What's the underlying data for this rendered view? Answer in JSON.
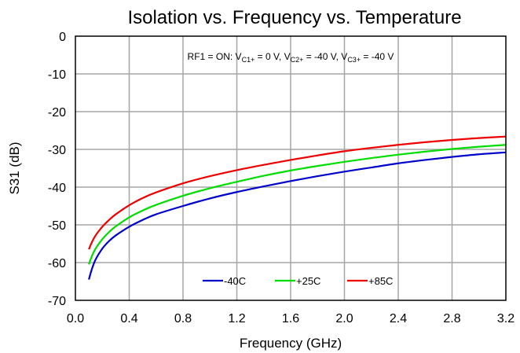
{
  "chart_data": {
    "type": "line",
    "title": "Isolation vs. Frequency vs. Temperature",
    "xlabel": "Frequency (GHz)",
    "ylabel": "S31 (dB)",
    "xlim": [
      0.0,
      3.2
    ],
    "ylim": [
      -70,
      0
    ],
    "x_ticks": [
      "0.0",
      "0.4",
      "0.8",
      "1.2",
      "1.6",
      "2.0",
      "2.4",
      "2.8",
      "3.2"
    ],
    "y_ticks": [
      "0",
      "-10",
      "-20",
      "-30",
      "-40",
      "-50",
      "-60",
      "-70"
    ],
    "grid": true,
    "annotation": {
      "prefix": "RF1 = ON: V",
      "sub1": "C1+",
      "mid1": " = 0 V, V",
      "sub2": "C2+",
      "mid2": " = -40 V, V",
      "sub3": "C3+",
      "suffix": " = -40 V"
    },
    "legend_position": "bottom-center",
    "series": [
      {
        "name": "-40C",
        "color": "#0000cc",
        "x": [
          0.1,
          0.12,
          0.15,
          0.2,
          0.25,
          0.3,
          0.4,
          0.5,
          0.6,
          0.8,
          1.0,
          1.2,
          1.4,
          1.6,
          1.8,
          2.0,
          2.2,
          2.4,
          2.6,
          2.8,
          3.0,
          3.2
        ],
        "y": [
          -64.5,
          -62,
          -59.2,
          -56.3,
          -54.3,
          -52.8,
          -50.5,
          -48.7,
          -47.2,
          -45.0,
          -43.0,
          -41.3,
          -39.8,
          -38.4,
          -37.1,
          -35.9,
          -34.8,
          -33.7,
          -32.8,
          -32.0,
          -31.3,
          -30.8
        ]
      },
      {
        "name": "+25C",
        "color": "#00dd00",
        "x": [
          0.1,
          0.12,
          0.15,
          0.2,
          0.25,
          0.3,
          0.4,
          0.5,
          0.6,
          0.8,
          1.0,
          1.2,
          1.4,
          1.6,
          1.8,
          2.0,
          2.2,
          2.4,
          2.6,
          2.8,
          3.0,
          3.2
        ],
        "y": [
          -60.5,
          -58.5,
          -56.3,
          -53.8,
          -51.9,
          -50.4,
          -48.0,
          -46.2,
          -44.7,
          -42.3,
          -40.3,
          -38.6,
          -37.0,
          -35.6,
          -34.4,
          -33.3,
          -32.3,
          -31.4,
          -30.6,
          -29.9,
          -29.3,
          -28.8
        ]
      },
      {
        "name": "+85C",
        "color": "#ee0000",
        "x": [
          0.1,
          0.12,
          0.15,
          0.2,
          0.25,
          0.3,
          0.4,
          0.5,
          0.6,
          0.8,
          1.0,
          1.2,
          1.4,
          1.6,
          1.8,
          2.0,
          2.2,
          2.4,
          2.6,
          2.8,
          3.0,
          3.2
        ],
        "y": [
          -56.5,
          -54.8,
          -52.8,
          -50.5,
          -48.7,
          -47.2,
          -44.8,
          -42.9,
          -41.4,
          -39.0,
          -37.1,
          -35.5,
          -34.1,
          -32.8,
          -31.6,
          -30.5,
          -29.6,
          -28.8,
          -28.1,
          -27.5,
          -27.0,
          -26.6
        ]
      }
    ]
  }
}
